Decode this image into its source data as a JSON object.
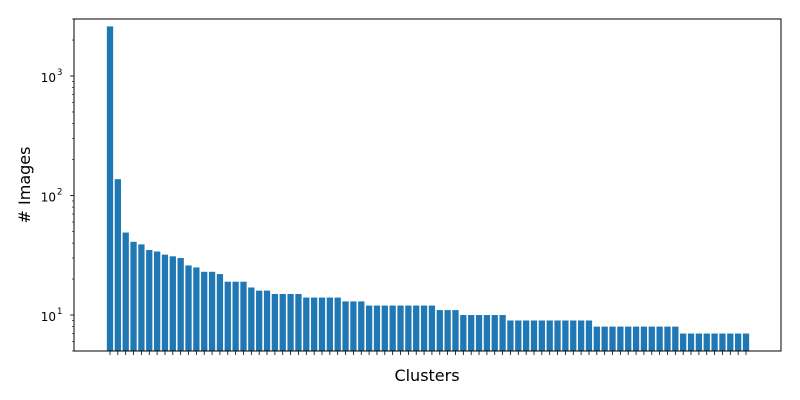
{
  "chart_data": {
    "type": "bar",
    "title": "",
    "xlabel": "Clusters",
    "ylabel": "# Images",
    "yscale": "log",
    "ylim": [
      5,
      3000
    ],
    "yticks": [
      {
        "value": 10,
        "base": "10",
        "exp": "1"
      },
      {
        "value": 100,
        "base": "10",
        "exp": "2"
      },
      {
        "value": 1000,
        "base": "10",
        "exp": "3"
      }
    ],
    "grid": false,
    "color": "#1f77b4",
    "values": [
      2600,
      137,
      49,
      41,
      39,
      35,
      34,
      32,
      31,
      30,
      26,
      25,
      23,
      23,
      22,
      19,
      19,
      19,
      17,
      16,
      16,
      15,
      15,
      15,
      15,
      14,
      14,
      14,
      14,
      14,
      13,
      13,
      13,
      12,
      12,
      12,
      12,
      12,
      12,
      12,
      12,
      12,
      11,
      11,
      11,
      10,
      10,
      10,
      10,
      10,
      10,
      9,
      9,
      9,
      9,
      9,
      9,
      9,
      9,
      9,
      9,
      9,
      8,
      8,
      8,
      8,
      8,
      8,
      8,
      8,
      8,
      8,
      8,
      7,
      7,
      7,
      7,
      7,
      7,
      7,
      7,
      7
    ]
  }
}
